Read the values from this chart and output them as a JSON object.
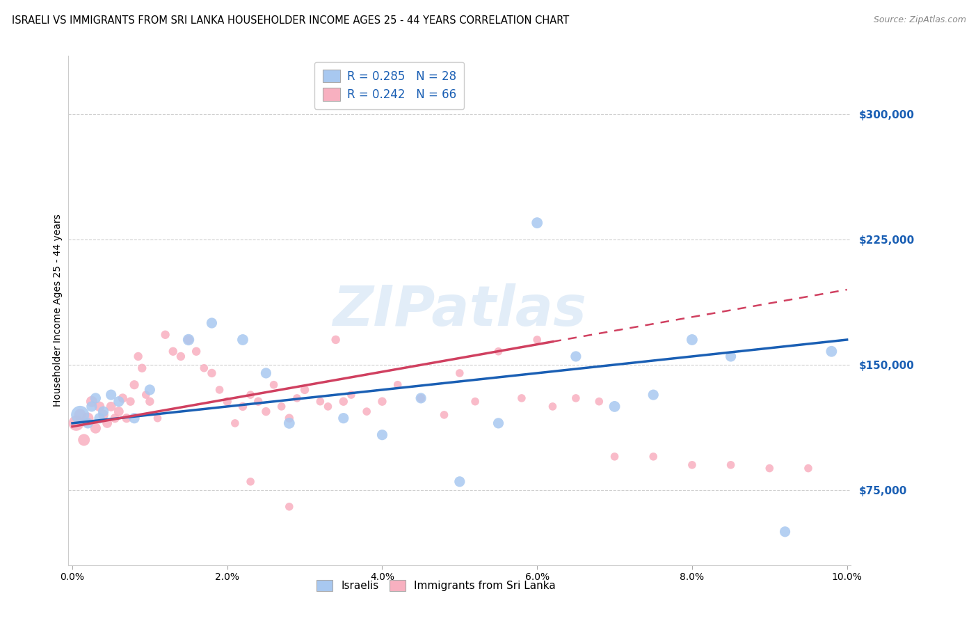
{
  "title": "ISRAELI VS IMMIGRANTS FROM SRI LANKA HOUSEHOLDER INCOME AGES 25 - 44 YEARS CORRELATION CHART",
  "source": "Source: ZipAtlas.com",
  "ylabel": "Householder Income Ages 25 - 44 years",
  "xlabel_ticks": [
    "0.0%",
    "2.0%",
    "4.0%",
    "6.0%",
    "8.0%",
    "10.0%"
  ],
  "xlabel_vals": [
    0.0,
    2.0,
    4.0,
    6.0,
    8.0,
    10.0
  ],
  "ytick_labels": [
    "$75,000",
    "$150,000",
    "$225,000",
    "$300,000"
  ],
  "ytick_vals": [
    75000,
    150000,
    225000,
    300000
  ],
  "xlim": [
    -0.05,
    10.05
  ],
  "ylim": [
    30000,
    335000
  ],
  "israelis_color": "#a8c8f0",
  "srilanka_color": "#f8b0c0",
  "israelis_line_color": "#1a5fb4",
  "srilanka_line_color": "#d04060",
  "R_israelis": 0.285,
  "N_israelis": 28,
  "R_srilanka": 0.242,
  "N_srilanka": 66,
  "legend_israelis": "Israelis",
  "legend_srilanka": "Immigrants from Sri Lanka",
  "watermark": "ZIPatlas",
  "israelis_x": [
    0.1,
    0.2,
    0.25,
    0.3,
    0.35,
    0.4,
    0.5,
    0.6,
    0.8,
    1.0,
    1.5,
    1.8,
    2.2,
    2.5,
    2.8,
    3.5,
    4.0,
    4.5,
    5.0,
    5.5,
    6.0,
    6.5,
    7.0,
    7.5,
    8.0,
    8.5,
    9.2,
    9.8
  ],
  "israelis_y": [
    120000,
    115000,
    125000,
    130000,
    118000,
    122000,
    132000,
    128000,
    118000,
    135000,
    165000,
    175000,
    165000,
    145000,
    115000,
    118000,
    108000,
    130000,
    80000,
    115000,
    235000,
    155000,
    125000,
    132000,
    165000,
    155000,
    50000,
    158000
  ],
  "israelis_size": [
    350,
    120,
    120,
    120,
    120,
    120,
    120,
    120,
    120,
    120,
    140,
    120,
    130,
    120,
    130,
    120,
    120,
    120,
    120,
    120,
    130,
    120,
    130,
    120,
    130,
    120,
    120,
    130
  ],
  "srilanka_x": [
    0.05,
    0.1,
    0.15,
    0.2,
    0.25,
    0.3,
    0.35,
    0.4,
    0.45,
    0.5,
    0.55,
    0.6,
    0.65,
    0.7,
    0.75,
    0.8,
    0.85,
    0.9,
    0.95,
    1.0,
    1.1,
    1.2,
    1.3,
    1.4,
    1.5,
    1.6,
    1.7,
    1.8,
    1.9,
    2.0,
    2.1,
    2.2,
    2.3,
    2.4,
    2.5,
    2.6,
    2.7,
    2.8,
    2.9,
    3.0,
    3.2,
    3.3,
    3.4,
    3.5,
    3.6,
    3.8,
    4.0,
    4.2,
    4.5,
    4.8,
    5.0,
    5.2,
    5.5,
    5.8,
    6.0,
    6.2,
    6.5,
    6.8,
    7.0,
    7.5,
    8.0,
    8.5,
    9.0,
    9.5,
    2.3,
    2.8
  ],
  "srilanka_y": [
    115000,
    120000,
    105000,
    118000,
    128000,
    112000,
    125000,
    120000,
    115000,
    125000,
    118000,
    122000,
    130000,
    118000,
    128000,
    138000,
    155000,
    148000,
    132000,
    128000,
    118000,
    168000,
    158000,
    155000,
    165000,
    158000,
    148000,
    145000,
    135000,
    128000,
    115000,
    125000,
    132000,
    128000,
    122000,
    138000,
    125000,
    118000,
    130000,
    135000,
    128000,
    125000,
    165000,
    128000,
    132000,
    122000,
    128000,
    138000,
    130000,
    120000,
    145000,
    128000,
    158000,
    130000,
    165000,
    125000,
    130000,
    128000,
    95000,
    95000,
    90000,
    90000,
    88000,
    88000,
    80000,
    65000
  ],
  "srilanka_size": [
    250,
    150,
    150,
    140,
    130,
    120,
    110,
    110,
    100,
    100,
    90,
    100,
    90,
    90,
    80,
    90,
    80,
    80,
    70,
    80,
    70,
    80,
    80,
    80,
    90,
    80,
    70,
    80,
    70,
    80,
    70,
    80,
    70,
    80,
    80,
    70,
    70,
    80,
    70,
    80,
    70,
    70,
    80,
    80,
    70,
    70,
    80,
    70,
    70,
    70,
    70,
    70,
    70,
    70,
    70,
    70,
    70,
    70,
    70,
    70,
    70,
    70,
    70,
    70,
    70,
    70
  ],
  "title_fontsize": 10.5,
  "axis_label_fontsize": 10,
  "tick_fontsize": 10,
  "background_color": "#ffffff",
  "grid_color": "#d0d0d0",
  "isr_line_x0": 0.0,
  "isr_line_y0": 115000,
  "isr_line_x1": 10.0,
  "isr_line_y1": 165000,
  "srl_line_x0": 0.0,
  "srl_line_y0": 113000,
  "srl_line_x1": 10.0,
  "srl_line_y1": 195000,
  "srl_solid_end": 6.2
}
